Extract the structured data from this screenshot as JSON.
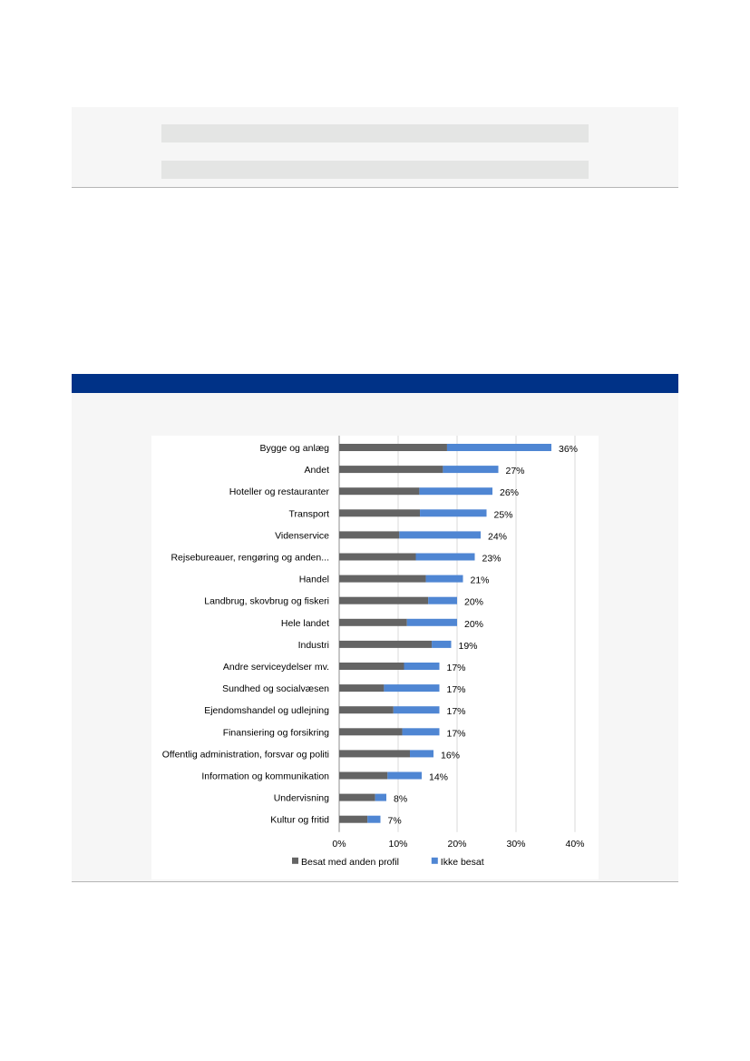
{
  "chart_data": {
    "type": "bar",
    "orientation": "horizontal",
    "stacked": true,
    "categories": [
      "Bygge og anlæg",
      "Andet",
      "Hoteller og restauranter",
      "Transport",
      "Videnservice",
      "Rejsebureauer, rengøring og anden...",
      "Handel",
      "Landbrug, skovbrug og fiskeri",
      "Hele landet",
      "Industri",
      "Andre serviceydelser mv.",
      "Sundhed og socialvæsen",
      "Ejendomshandel og udlejning",
      "Finansiering og forsikring",
      "Offentlig administration, forsvar og politi",
      "Information og kommunikation",
      "Undervisning",
      "Kultur og fritid"
    ],
    "series": [
      {
        "name": "Besat med anden profil",
        "color": "#646464",
        "values": [
          18.3,
          17.6,
          13.6,
          13.7,
          10.2,
          13.0,
          14.7,
          15.1,
          11.5,
          15.7,
          11.0,
          7.6,
          9.2,
          10.7,
          12.0,
          8.2,
          6.1,
          4.8
        ]
      },
      {
        "name": "Ikke besat",
        "color": "#4f86d3",
        "values": [
          17.7,
          9.4,
          12.4,
          11.3,
          13.8,
          10.0,
          6.3,
          4.9,
          8.5,
          3.3,
          6.0,
          9.4,
          7.8,
          6.3,
          4.0,
          5.8,
          1.9,
          2.2
        ]
      }
    ],
    "totals_labels": [
      "36%",
      "27%",
      "26%",
      "25%",
      "24%",
      "23%",
      "21%",
      "20%",
      "20%",
      "19%",
      "17%",
      "17%",
      "17%",
      "17%",
      "16%",
      "14%",
      "8%",
      "7%"
    ],
    "x_ticks": [
      "0%",
      "10%",
      "20%",
      "30%",
      "40%"
    ],
    "xlim": [
      0,
      40
    ],
    "grid": "vertical",
    "legend": "bottom",
    "title": "",
    "xlabel": "",
    "ylabel": ""
  }
}
